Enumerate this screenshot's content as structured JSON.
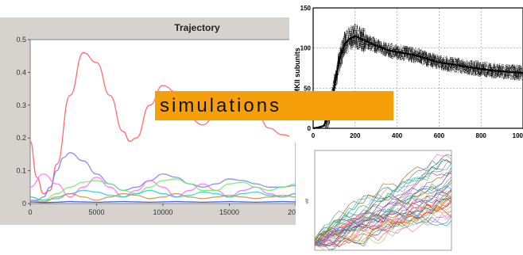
{
  "banner": {
    "label": "simulations"
  },
  "trajectory": {
    "title": "Trajectory",
    "yticks": [
      "0",
      "0.1",
      "0.2",
      "0.3",
      "0.4",
      "0.5"
    ],
    "xticks": [
      "0",
      "5000",
      "10000",
      "15000",
      "20"
    ],
    "background": "#d6d3ce",
    "plot_bg": "#ffffff"
  },
  "camk": {
    "ylabel": "ed CaMKII subunits",
    "yticks": [
      "0",
      "50",
      "100",
      "150"
    ],
    "xticks": [
      "0",
      "200",
      "400",
      "600",
      "800",
      "100"
    ]
  },
  "small": {
    "ylabel": "nM"
  },
  "chart_data": [
    {
      "type": "line",
      "title": "Trajectory",
      "xlim": [
        0,
        20000
      ],
      "ylim": [
        0,
        0.5
      ],
      "grid": false,
      "series": [
        {
          "color": "#ff5555",
          "x": [
            0,
            500,
            1000,
            1500,
            2000,
            3000,
            4000,
            5000,
            6000,
            7000,
            7500,
            8000,
            9000,
            10000,
            11000,
            12000,
            13000,
            14000,
            15000,
            16000,
            17000,
            18000,
            19000,
            20000
          ],
          "values": [
            0.19,
            0.08,
            0.03,
            0.04,
            0.12,
            0.33,
            0.46,
            0.43,
            0.33,
            0.22,
            0.19,
            0.2,
            0.3,
            0.36,
            0.34,
            0.26,
            0.24,
            0.27,
            0.31,
            0.33,
            0.28,
            0.23,
            0.21,
            0.2
          ]
        },
        {
          "color": "#7777ff",
          "x": [
            0,
            500,
            1000,
            1500,
            2000,
            2500,
            3000,
            4000,
            5000,
            6000,
            7000,
            8000,
            9000,
            10000,
            11000,
            12000,
            13000,
            14000,
            15000,
            16000,
            17000,
            18000,
            19000,
            20000
          ],
          "values": [
            0.01,
            0.01,
            0.02,
            0.05,
            0.1,
            0.14,
            0.155,
            0.13,
            0.09,
            0.06,
            0.04,
            0.05,
            0.07,
            0.09,
            0.08,
            0.06,
            0.05,
            0.06,
            0.075,
            0.07,
            0.06,
            0.05,
            0.05,
            0.055
          ]
        },
        {
          "color": "#ff66ff",
          "x": [
            0,
            1000,
            2000,
            3000,
            4000,
            5000,
            6000,
            7000,
            8000,
            9000,
            10000,
            11000,
            12000,
            13000,
            14000,
            15000,
            16000,
            17000,
            18000,
            19000,
            20000
          ],
          "values": [
            0.05,
            0.09,
            0.06,
            0.02,
            0.05,
            0.08,
            0.05,
            0.02,
            0.04,
            0.07,
            0.05,
            0.02,
            0.04,
            0.06,
            0.04,
            0.02,
            0.04,
            0.05,
            0.03,
            0.02,
            0.03
          ]
        },
        {
          "color": "#66ee66",
          "x": [
            0,
            1000,
            2000,
            3000,
            4000,
            5000,
            6000,
            7000,
            8000,
            9000,
            10000,
            11000,
            12000,
            13000,
            14000,
            15000,
            16000,
            17000,
            18000,
            19000,
            20000
          ],
          "values": [
            0.02,
            0.01,
            0.03,
            0.05,
            0.065,
            0.07,
            0.06,
            0.04,
            0.03,
            0.05,
            0.07,
            0.075,
            0.06,
            0.04,
            0.04,
            0.06,
            0.065,
            0.05,
            0.04,
            0.05,
            0.06
          ]
        },
        {
          "color": "#22cccc",
          "x": [
            0,
            1000,
            2000,
            3000,
            4000,
            5000,
            6000,
            7000,
            8000,
            9000,
            10000,
            11000,
            12000,
            13000,
            14000,
            15000,
            16000,
            17000,
            18000,
            19000,
            20000
          ],
          "values": [
            0.02,
            0.01,
            0.015,
            0.03,
            0.04,
            0.035,
            0.025,
            0.02,
            0.03,
            0.04,
            0.03,
            0.02,
            0.025,
            0.035,
            0.03,
            0.02,
            0.03,
            0.035,
            0.025,
            0.02,
            0.03
          ]
        },
        {
          "color": "#cc8844",
          "x": [
            0,
            1000,
            2000,
            3000,
            4000,
            5000,
            6000,
            7000,
            8000,
            9000,
            10000,
            11000,
            12000,
            13000,
            14000,
            15000,
            16000,
            17000,
            18000,
            19000,
            20000
          ],
          "values": [
            0.01,
            0.005,
            0.02,
            0.03,
            0.02,
            0.01,
            0.02,
            0.03,
            0.025,
            0.015,
            0.02,
            0.03,
            0.02,
            0.015,
            0.02,
            0.025,
            0.02,
            0.015,
            0.02,
            0.025,
            0.02
          ]
        },
        {
          "color": "#2244ee",
          "x": [
            0,
            1000,
            2000,
            3000,
            4000,
            5000,
            6000,
            7000,
            8000,
            9000,
            10000,
            11000,
            12000,
            13000,
            14000,
            15000,
            16000,
            17000,
            18000,
            19000,
            20000
          ],
          "values": [
            0.005,
            0.003,
            0.004,
            0.006,
            0.005,
            0.004,
            0.005,
            0.006,
            0.005,
            0.004,
            0.005,
            0.006,
            0.005,
            0.004,
            0.005,
            0.006,
            0.005,
            0.004,
            0.005,
            0.006,
            0.005
          ]
        }
      ]
    },
    {
      "type": "line",
      "ylabel": "ed CaMKII subunits",
      "xlim": [
        0,
        1000
      ],
      "ylim": [
        0,
        150
      ],
      "grid": true,
      "series": [
        {
          "color": "#000000",
          "x": [
            0,
            25,
            50,
            75,
            100,
            125,
            150,
            175,
            200,
            225,
            250,
            300,
            350,
            400,
            450,
            500,
            550,
            600,
            650,
            700,
            750,
            800,
            850,
            900,
            950,
            1000
          ],
          "values": [
            0,
            1,
            3,
            15,
            50,
            85,
            105,
            112,
            115,
            112,
            109,
            103,
            98,
            95,
            93,
            90,
            86,
            82,
            80,
            78,
            76,
            74,
            72,
            71,
            70,
            69
          ]
        }
      ],
      "spread": 10
    },
    {
      "type": "line",
      "ylabel": "nM",
      "series_count": 40,
      "ylim": [
        0,
        25
      ]
    }
  ]
}
